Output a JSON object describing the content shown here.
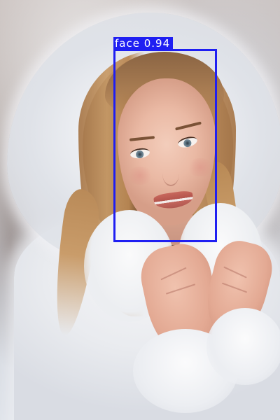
{
  "detection": {
    "label": "face",
    "confidence": "0.94",
    "box_color": "#1f1ff2",
    "text_color": "#ffffff"
  }
}
